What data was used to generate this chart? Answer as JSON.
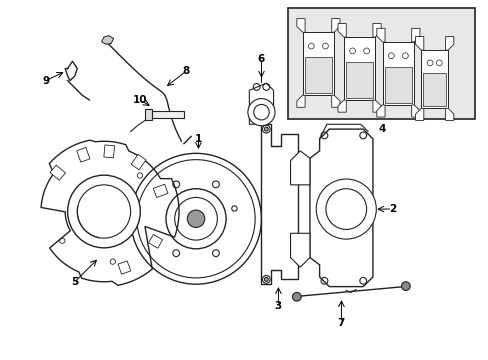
{
  "background_color": "#ffffff",
  "line_color": "#222222",
  "label_color": "#000000",
  "inset_bg": "#e8e8e8",
  "figsize": [
    4.89,
    3.6
  ],
  "dpi": 100,
  "xlim": [
    0,
    10.0
  ],
  "ylim": [
    0,
    7.4
  ]
}
